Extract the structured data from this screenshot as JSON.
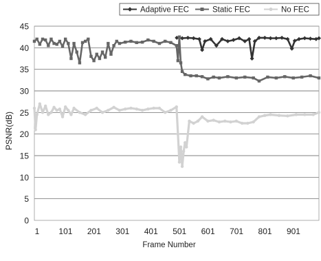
{
  "chart_data": {
    "type": "line",
    "title": "",
    "xlabel": "Frame Number",
    "ylabel": "PSNR(dB)",
    "ylim": [
      0,
      45
    ],
    "yticks": [
      0,
      5,
      10,
      15,
      20,
      25,
      30,
      35,
      40,
      45
    ],
    "xlim": [
      1,
      1000
    ],
    "xticks": [
      1,
      101,
      201,
      301,
      401,
      501,
      601,
      701,
      801,
      901
    ],
    "grid": "horizontal",
    "legend_position": "top-right",
    "series": [
      {
        "name": "Adaptive FEC",
        "color": "#333333",
        "marker": "diamond",
        "x": [
          501,
          520,
          540,
          560,
          580,
          590,
          600,
          620,
          640,
          660,
          680,
          700,
          720,
          740,
          755,
          765,
          775,
          790,
          810,
          830,
          850,
          870,
          890,
          905,
          915,
          930,
          950,
          970,
          990,
          1000
        ],
        "y": [
          42.3,
          42.2,
          42.3,
          42.2,
          42.0,
          39.5,
          41.5,
          42.0,
          40.5,
          42.0,
          41.5,
          41.8,
          42.2,
          41.5,
          42.0,
          37.5,
          41.5,
          42.3,
          42.3,
          42.2,
          42.2,
          42.3,
          42.0,
          39.8,
          41.6,
          42.0,
          42.2,
          42.1,
          42.0,
          42.2
        ]
      },
      {
        "name": "Static FEC",
        "color": "#666666",
        "marker": "square",
        "x": [
          1,
          10,
          20,
          30,
          40,
          50,
          60,
          70,
          80,
          90,
          100,
          110,
          120,
          130,
          140,
          150,
          160,
          170,
          180,
          190,
          200,
          210,
          220,
          230,
          240,
          250,
          260,
          270,
          280,
          290,
          300,
          320,
          340,
          360,
          380,
          400,
          420,
          440,
          460,
          480,
          500,
          505,
          510,
          515,
          520,
          530,
          550,
          570,
          590,
          610,
          630,
          650,
          680,
          710,
          740,
          770,
          790,
          820,
          850,
          880,
          910,
          940,
          970,
          1000
        ],
        "y": [
          41.5,
          42.0,
          40.8,
          42.0,
          41.8,
          40.5,
          42.0,
          41.0,
          40.8,
          41.5,
          40.3,
          42.0,
          41.0,
          37.5,
          41.0,
          39.0,
          36.5,
          41.2,
          41.5,
          42.0,
          38.0,
          37.0,
          38.5,
          37.5,
          39.0,
          37.8,
          41.0,
          38.5,
          40.5,
          41.5,
          41.0,
          41.3,
          41.5,
          41.2,
          41.3,
          41.8,
          41.5,
          41.0,
          41.5,
          41.2,
          40.5,
          37.0,
          42.5,
          36.5,
          34.5,
          33.8,
          33.5,
          33.5,
          33.3,
          32.8,
          33.2,
          33.0,
          33.3,
          33.0,
          33.2,
          33.0,
          32.3,
          33.2,
          33.0,
          33.3,
          33.0,
          33.2,
          33.5,
          33.0
        ]
      },
      {
        "name": "No FEC",
        "color": "#d2d2d2",
        "marker": "circle",
        "x": [
          1,
          5,
          10,
          20,
          30,
          40,
          50,
          60,
          70,
          80,
          90,
          100,
          110,
          120,
          130,
          140,
          160,
          180,
          200,
          220,
          240,
          260,
          280,
          300,
          320,
          340,
          360,
          380,
          400,
          420,
          440,
          460,
          480,
          500,
          505,
          510,
          515,
          520,
          525,
          530,
          535,
          545,
          560,
          575,
          590,
          610,
          630,
          650,
          670,
          690,
          710,
          730,
          750,
          770,
          790,
          810,
          830,
          860,
          890,
          920,
          950,
          980,
          1000
        ],
        "y": [
          26.0,
          21.0,
          24.5,
          27.0,
          25.0,
          26.5,
          24.5,
          25.0,
          26.2,
          25.5,
          25.8,
          24.0,
          26.3,
          25.5,
          24.5,
          26.0,
          25.0,
          24.5,
          25.5,
          26.0,
          25.0,
          25.5,
          26.2,
          25.5,
          25.8,
          26.0,
          25.8,
          25.5,
          25.8,
          26.0,
          26.0,
          25.0,
          25.5,
          26.3,
          20.0,
          13.5,
          17.0,
          12.5,
          16.0,
          18.0,
          17.0,
          23.0,
          22.5,
          23.0,
          24.0,
          23.0,
          23.2,
          22.8,
          23.0,
          22.8,
          23.0,
          22.5,
          22.5,
          22.8,
          24.0,
          24.3,
          24.5,
          24.3,
          24.2,
          24.5,
          24.5,
          24.5,
          25.0
        ]
      }
    ]
  }
}
